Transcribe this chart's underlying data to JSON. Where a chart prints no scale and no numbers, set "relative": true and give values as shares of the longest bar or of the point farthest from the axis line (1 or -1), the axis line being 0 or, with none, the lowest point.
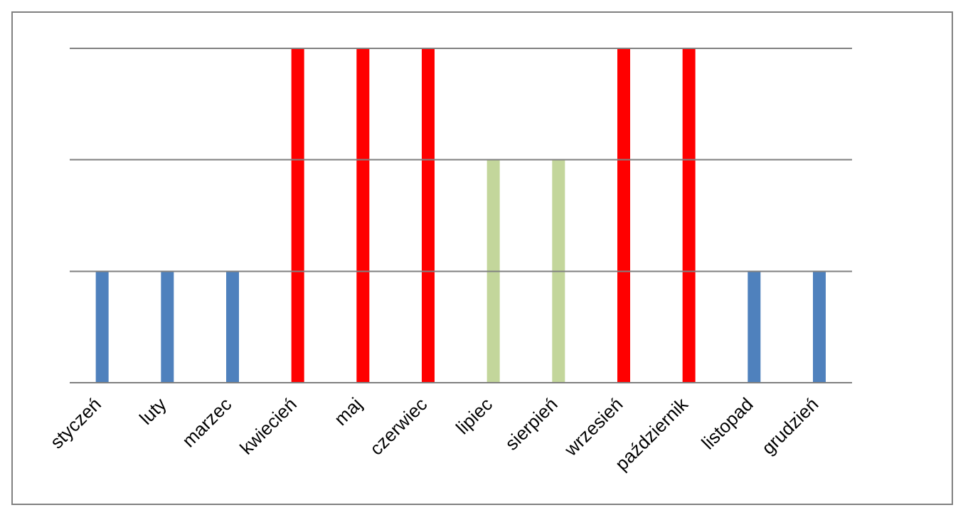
{
  "chart_data": {
    "type": "bar",
    "relative": true,
    "ref_lines": [
      {
        "axis": "y",
        "value": 0.333,
        "color": "#808080"
      },
      {
        "axis": "y",
        "value": 0.667,
        "color": "#808080"
      },
      {
        "axis": "y",
        "value": 1,
        "color": "#808080"
      }
    ],
    "categories": [
      "styczeń",
      "luty",
      "marzec",
      "kwiecień",
      "maj",
      "czerwiec",
      "lipiec",
      "sierpień",
      "wrzesień",
      "październik",
      "listopad",
      "grudzień"
    ],
    "values": [
      0.333,
      0.333,
      0.333,
      1,
      1,
      1,
      0.667,
      0.667,
      1,
      1,
      0.333,
      0.333
    ],
    "colors": [
      "#4f81bd",
      "#4f81bd",
      "#4f81bd",
      "#ff0000",
      "#ff0000",
      "#ff0000",
      "#c3d69b",
      "#c3d69b",
      "#ff0000",
      "#ff0000",
      "#4f81bd",
      "#4f81bd"
    ]
  }
}
